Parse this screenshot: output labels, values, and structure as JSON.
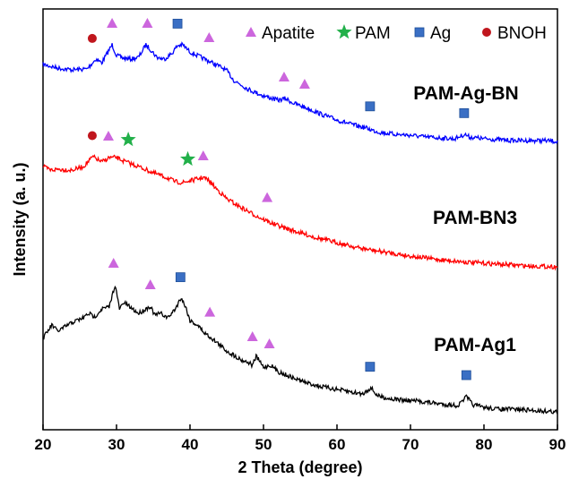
{
  "chart_data": {
    "type": "line",
    "xlabel": "2 Theta (degree)",
    "ylabel": "Intensity (a. u.)",
    "xlim": [
      20,
      90
    ],
    "xticks": [
      20,
      30,
      40,
      50,
      60,
      70,
      80,
      90
    ],
    "grid": false,
    "legend": {
      "placement": "top-right",
      "entries": [
        {
          "name": "Apatite",
          "marker": "triangle",
          "color": "#cc66dd"
        },
        {
          "name": "PAM",
          "marker": "star",
          "color": "#22b04a"
        },
        {
          "name": "Ag",
          "marker": "square",
          "color": "#3a6fc4"
        },
        {
          "name": "BNOH",
          "marker": "circle",
          "color": "#c0161d"
        }
      ]
    },
    "series": [
      {
        "name": "PAM-Ag-BN",
        "color": "#0000ff",
        "points": [
          [
            20,
            72
          ],
          [
            22,
            76
          ],
          [
            24,
            78
          ],
          [
            26,
            77
          ],
          [
            27.2,
            66
          ],
          [
            28,
            70
          ],
          [
            29.4,
            50
          ],
          [
            30,
            62
          ],
          [
            31,
            65
          ],
          [
            32,
            66
          ],
          [
            33,
            64
          ],
          [
            34,
            50
          ],
          [
            34.6,
            55
          ],
          [
            35.5,
            64
          ],
          [
            36.5,
            66
          ],
          [
            37.5,
            60
          ],
          [
            38.3,
            51
          ],
          [
            39,
            50
          ],
          [
            40,
            58
          ],
          [
            41,
            62
          ],
          [
            42,
            66
          ],
          [
            43,
            70
          ],
          [
            44,
            74
          ],
          [
            45,
            79
          ],
          [
            46,
            90
          ],
          [
            48,
            100
          ],
          [
            50,
            107
          ],
          [
            52,
            112
          ],
          [
            53,
            110
          ],
          [
            54,
            115
          ],
          [
            56,
            121
          ],
          [
            58,
            128
          ],
          [
            60,
            134
          ],
          [
            62,
            139
          ],
          [
            64,
            143
          ],
          [
            65,
            146
          ],
          [
            66,
            148
          ],
          [
            68,
            150
          ],
          [
            70,
            151
          ],
          [
            72,
            153
          ],
          [
            74,
            154
          ],
          [
            76,
            155
          ],
          [
            77.4,
            150
          ],
          [
            78,
            153
          ],
          [
            80,
            155
          ],
          [
            82,
            156
          ],
          [
            84,
            157
          ],
          [
            86,
            157
          ],
          [
            88,
            157
          ],
          [
            90,
            158
          ]
        ]
      },
      {
        "name": "PAM-BN3",
        "color": "#ff0000",
        "points": [
          [
            20,
            186
          ],
          [
            21,
            190
          ],
          [
            22,
            189
          ],
          [
            24,
            190
          ],
          [
            25.5,
            186
          ],
          [
            26.8,
            175
          ],
          [
            28,
            181
          ],
          [
            29,
            176
          ],
          [
            30,
            176
          ],
          [
            31,
            180
          ],
          [
            32,
            183
          ],
          [
            33,
            186
          ],
          [
            35,
            193
          ],
          [
            37,
            199
          ],
          [
            38,
            203
          ],
          [
            39,
            204
          ],
          [
            40,
            202
          ],
          [
            41,
            200
          ],
          [
            41.8,
            198
          ],
          [
            42.6,
            202
          ],
          [
            43.5,
            210
          ],
          [
            45,
            222
          ],
          [
            47,
            232
          ],
          [
            49,
            241
          ],
          [
            51,
            249
          ],
          [
            53,
            255
          ],
          [
            55,
            260
          ],
          [
            57,
            265
          ],
          [
            60,
            271
          ],
          [
            63,
            277
          ],
          [
            66,
            281
          ],
          [
            70,
            286
          ],
          [
            74,
            290
          ],
          [
            78,
            293
          ],
          [
            82,
            295
          ],
          [
            86,
            297
          ],
          [
            90,
            298
          ]
        ]
      },
      {
        "name": "PAM-Ag1",
        "color": "#000000",
        "points": [
          [
            20,
            378
          ],
          [
            21.2,
            363
          ],
          [
            22,
            370
          ],
          [
            24,
            360
          ],
          [
            25.5,
            355
          ],
          [
            26.2,
            350
          ],
          [
            27,
            354
          ],
          [
            28,
            345
          ],
          [
            29,
            343
          ],
          [
            29.8,
            318
          ],
          [
            30.4,
            345
          ],
          [
            31,
            338
          ],
          [
            32,
            344
          ],
          [
            33,
            350
          ],
          [
            34,
            345
          ],
          [
            34.6,
            342
          ],
          [
            35.2,
            352
          ],
          [
            36,
            350
          ],
          [
            37,
            355
          ],
          [
            38,
            345
          ],
          [
            38.8,
            332
          ],
          [
            39.5,
            345
          ],
          [
            40,
            358
          ],
          [
            41,
            363
          ],
          [
            42,
            372
          ],
          [
            43,
            378
          ],
          [
            44,
            385
          ],
          [
            45,
            392
          ],
          [
            46,
            397
          ],
          [
            47,
            402
          ],
          [
            48,
            405
          ],
          [
            48.5,
            408
          ],
          [
            49,
            398
          ],
          [
            50,
            410
          ],
          [
            51,
            408
          ],
          [
            52,
            415
          ],
          [
            54,
            422
          ],
          [
            56,
            428
          ],
          [
            58,
            432
          ],
          [
            60,
            435
          ],
          [
            62,
            438
          ],
          [
            63.5,
            440
          ],
          [
            64.6,
            433
          ],
          [
            65.5,
            442
          ],
          [
            67,
            445
          ],
          [
            69,
            447
          ],
          [
            71,
            448
          ],
          [
            73,
            450
          ],
          [
            75,
            452
          ],
          [
            76.5,
            453
          ],
          [
            77.6,
            443
          ],
          [
            78.5,
            452
          ],
          [
            80,
            455
          ],
          [
            82,
            457
          ],
          [
            84,
            457
          ],
          [
            86,
            458
          ],
          [
            88,
            459
          ],
          [
            90,
            460
          ]
        ]
      }
    ],
    "annotations": [
      {
        "series": "PAM-Ag-BN",
        "type": "Apatite",
        "x": [
          29.4,
          34.2,
          42.6,
          52.8,
          55.6
        ]
      },
      {
        "series": "PAM-Ag-BN",
        "type": "Ag",
        "x": [
          38.3,
          64.5,
          77.3
        ]
      },
      {
        "series": "PAM-Ag-BN",
        "type": "BNOH",
        "x": [
          26.7
        ]
      },
      {
        "series": "PAM-BN3",
        "type": "Apatite",
        "x": [
          28.9,
          41.8,
          50.5
        ]
      },
      {
        "series": "PAM-BN3",
        "type": "PAM",
        "x": [
          31.6,
          39.7
        ]
      },
      {
        "series": "PAM-BN3",
        "type": "BNOH",
        "x": [
          26.7
        ]
      },
      {
        "series": "PAM-Ag1",
        "type": "Apatite",
        "x": [
          29.6,
          34.6,
          42.7,
          48.5,
          50.8
        ]
      },
      {
        "series": "PAM-Ag1",
        "type": "Ag",
        "x": [
          38.7,
          64.5,
          77.6
        ]
      }
    ]
  }
}
